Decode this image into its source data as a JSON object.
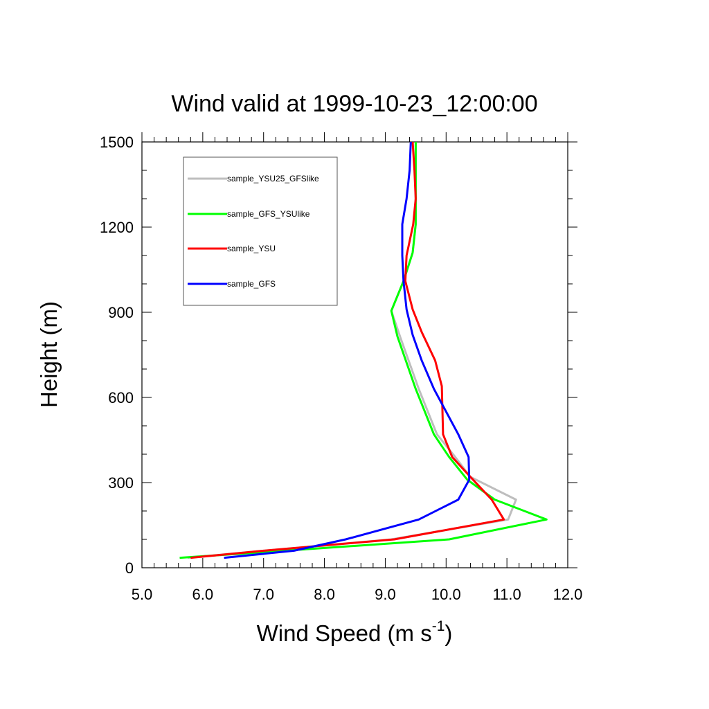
{
  "chart_data": {
    "type": "line",
    "title": "Wind valid at 1999-10-23_12:00:00",
    "xlabel": "Wind Speed (m s",
    "xlabel_sup": "-1",
    "xlabel_close": ")",
    "ylabel": "Height (m)",
    "xlim": [
      5.0,
      12.0
    ],
    "ylim": [
      0,
      1500
    ],
    "x_ticks": [
      5.0,
      6.0,
      7.0,
      8.0,
      9.0,
      10.0,
      11.0,
      12.0
    ],
    "x_tick_labels": [
      "5.0",
      "6.0",
      "7.0",
      "8.0",
      "9.0",
      "10.0",
      "11.0",
      "12.0"
    ],
    "y_ticks": [
      0,
      300,
      600,
      900,
      1200,
      1500
    ],
    "y_tick_labels": [
      "0",
      "300",
      "600",
      "900",
      "1200",
      "1500"
    ],
    "grid": false,
    "legend_position": "top-left",
    "series": [
      {
        "name": "sample_YSU25_GFSlike",
        "color": "#bebebe",
        "points": [
          [
            5.75,
            35
          ],
          [
            7.0,
            60
          ],
          [
            9.1,
            100
          ],
          [
            11.02,
            170
          ],
          [
            11.15,
            240
          ],
          [
            10.4,
            320
          ],
          [
            10.15,
            390
          ],
          [
            9.85,
            470
          ],
          [
            9.55,
            630
          ],
          [
            9.25,
            810
          ],
          [
            9.1,
            905
          ],
          [
            9.3,
            1010
          ],
          [
            9.45,
            1110
          ],
          [
            9.5,
            1210
          ],
          [
            9.5,
            1310
          ],
          [
            9.5,
            1400
          ],
          [
            9.5,
            1500
          ]
        ]
      },
      {
        "name": "sample_GFS_YSUlike",
        "color": "#00ff00",
        "points": [
          [
            5.62,
            35
          ],
          [
            7.0,
            55
          ],
          [
            10.05,
            100
          ],
          [
            11.65,
            170
          ],
          [
            10.8,
            240
          ],
          [
            10.35,
            310
          ],
          [
            10.05,
            390
          ],
          [
            9.8,
            470
          ],
          [
            9.5,
            630
          ],
          [
            9.2,
            815
          ],
          [
            9.1,
            905
          ],
          [
            9.3,
            1010
          ],
          [
            9.45,
            1110
          ],
          [
            9.5,
            1210
          ],
          [
            9.5,
            1310
          ],
          [
            9.5,
            1400
          ],
          [
            9.5,
            1500
          ]
        ]
      },
      {
        "name": "sample_YSU",
        "color": "#ff0000",
        "points": [
          [
            5.8,
            35
          ],
          [
            7.0,
            60
          ],
          [
            9.15,
            100
          ],
          [
            10.95,
            170
          ],
          [
            10.75,
            240
          ],
          [
            10.4,
            320
          ],
          [
            10.1,
            390
          ],
          [
            9.95,
            470
          ],
          [
            9.93,
            640
          ],
          [
            9.82,
            730
          ],
          [
            9.6,
            830
          ],
          [
            9.45,
            910
          ],
          [
            9.33,
            1010
          ],
          [
            9.35,
            1100
          ],
          [
            9.46,
            1210
          ],
          [
            9.5,
            1300
          ],
          [
            9.48,
            1400
          ],
          [
            9.45,
            1500
          ]
        ]
      },
      {
        "name": "sample_GFS",
        "color": "#0000ff",
        "points": [
          [
            6.35,
            35
          ],
          [
            7.5,
            60
          ],
          [
            8.35,
            100
          ],
          [
            9.55,
            170
          ],
          [
            10.2,
            240
          ],
          [
            10.38,
            310
          ],
          [
            10.37,
            390
          ],
          [
            10.2,
            470
          ],
          [
            9.8,
            630
          ],
          [
            9.6,
            730
          ],
          [
            9.45,
            820
          ],
          [
            9.35,
            910
          ],
          [
            9.3,
            1010
          ],
          [
            9.28,
            1100
          ],
          [
            9.28,
            1210
          ],
          [
            9.35,
            1300
          ],
          [
            9.4,
            1400
          ],
          [
            9.42,
            1500
          ]
        ]
      }
    ]
  }
}
